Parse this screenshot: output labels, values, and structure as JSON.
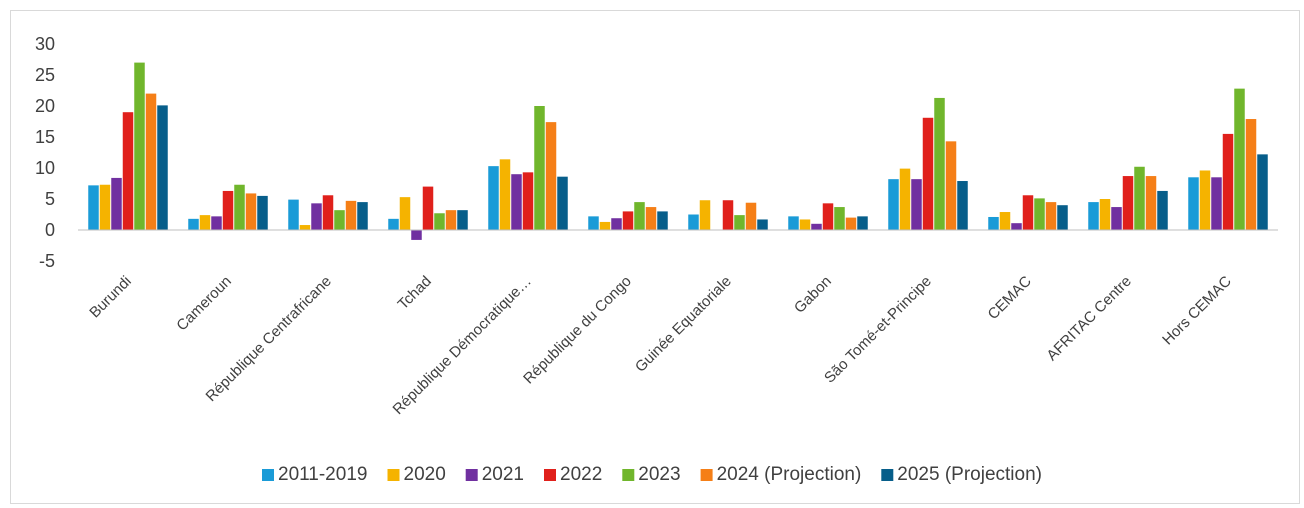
{
  "chart_data": {
    "type": "bar",
    "title": "",
    "xlabel": "",
    "ylabel": "",
    "ylim": [
      -5,
      30
    ],
    "yticks": [
      -5,
      0,
      5,
      10,
      15,
      20,
      25,
      30
    ],
    "grid": false,
    "legend_position": "bottom",
    "categories": [
      "Burundi",
      "Cameroun",
      "République Centrafricane",
      "Tchad",
      "République Démocratique…",
      "République du Congo",
      "Guinée Equatoriale",
      "Gabon",
      "São Tomé-et-Principe",
      "CEMAC",
      "AFRITAC Centre",
      "Hors CEMAC"
    ],
    "series": [
      {
        "name": "2011-2019",
        "color": "#1a9bd7",
        "values": [
          7.2,
          1.8,
          4.9,
          1.8,
          10.3,
          2.2,
          2.5,
          2.2,
          8.2,
          2.1,
          4.5,
          8.5
        ]
      },
      {
        "name": "2020",
        "color": "#f5b300",
        "values": [
          7.3,
          2.4,
          0.8,
          5.3,
          11.4,
          1.3,
          4.8,
          1.7,
          9.9,
          2.9,
          5.0,
          9.6
        ]
      },
      {
        "name": "2021",
        "color": "#7030a0",
        "values": [
          8.4,
          2.2,
          4.3,
          -1.6,
          9.0,
          1.9,
          0.0,
          1.0,
          8.2,
          1.1,
          3.7,
          8.5
        ]
      },
      {
        "name": "2022",
        "color": "#e0201b",
        "values": [
          19.0,
          6.3,
          5.6,
          7.0,
          9.3,
          3.0,
          4.8,
          4.3,
          18.1,
          5.6,
          8.7,
          15.5
        ]
      },
      {
        "name": "2023",
        "color": "#70b62c",
        "values": [
          27.0,
          7.3,
          3.2,
          2.7,
          20.0,
          4.5,
          2.4,
          3.7,
          21.3,
          5.1,
          10.2,
          22.8
        ]
      },
      {
        "name": "2024 (Projection)",
        "color": "#f57f17",
        "values": [
          22.0,
          5.9,
          4.7,
          3.2,
          17.4,
          3.7,
          4.4,
          2.0,
          14.3,
          4.5,
          8.7,
          17.9
        ]
      },
      {
        "name": "2025 (Projection)",
        "color": "#075e8a",
        "values": [
          20.1,
          5.5,
          4.5,
          3.2,
          8.6,
          3.0,
          1.7,
          2.2,
          7.9,
          4.0,
          6.3,
          12.2
        ]
      }
    ]
  }
}
